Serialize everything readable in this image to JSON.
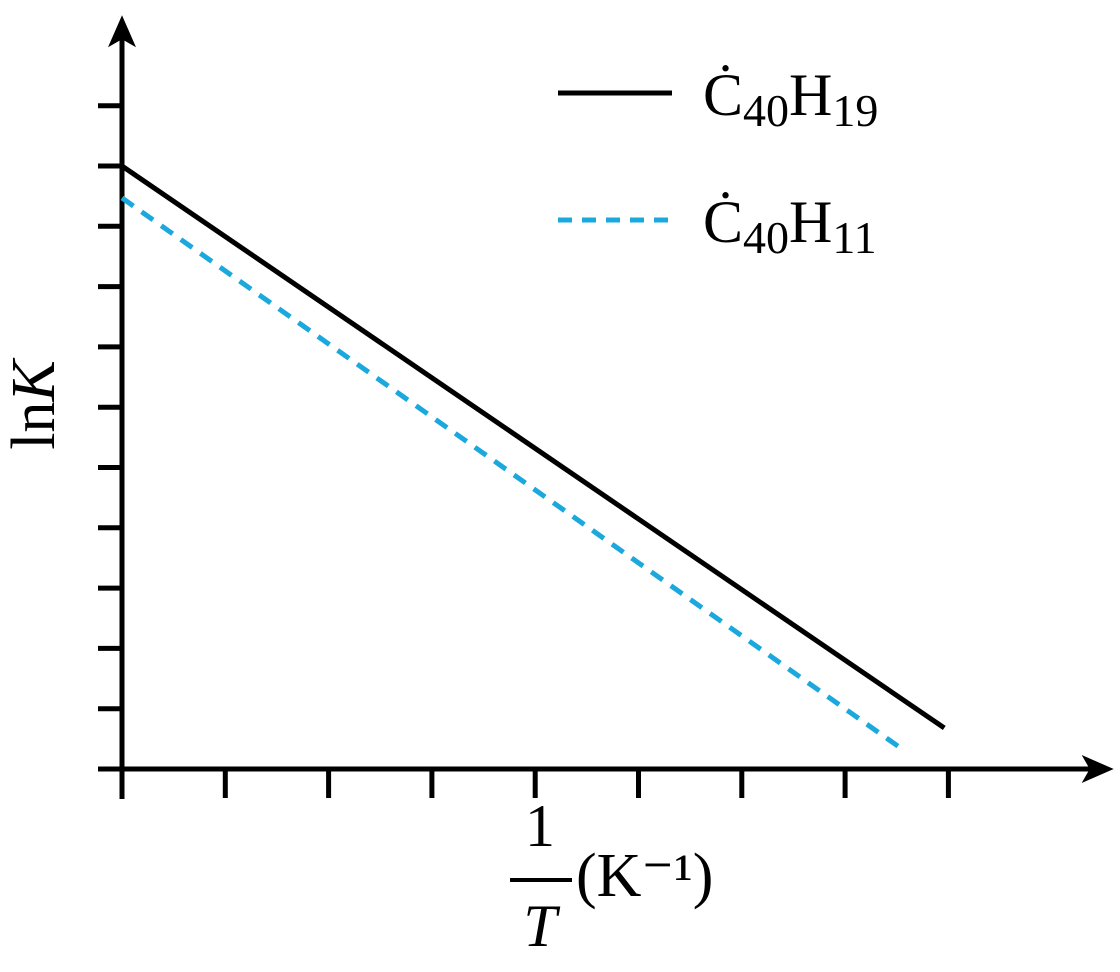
{
  "chart_data": {
    "type": "line",
    "x_label": {
      "numerator": "1",
      "denominator": "T",
      "unit": "(K⁻¹)"
    },
    "y_label": "lnK",
    "xlim": [
      0,
      9.6
    ],
    "ylim": [
      0,
      12.5
    ],
    "xticks": [
      0,
      1,
      2,
      3,
      4,
      5,
      6,
      7,
      8
    ],
    "yticks": [
      0,
      1,
      2,
      3,
      4,
      5,
      6,
      7,
      8,
      9,
      10,
      11
    ],
    "legend": "upper right",
    "series": [
      {
        "name": "Ċ40H19",
        "color": "#000000",
        "dash": false,
        "x": [
          0,
          7.96
        ],
        "values": [
          10,
          0.68
        ]
      },
      {
        "name": "Ċ40H11",
        "color": "#1ba8dd",
        "dash": true,
        "x": [
          0,
          7.56
        ],
        "values": [
          9.47,
          0.32
        ]
      }
    ]
  }
}
